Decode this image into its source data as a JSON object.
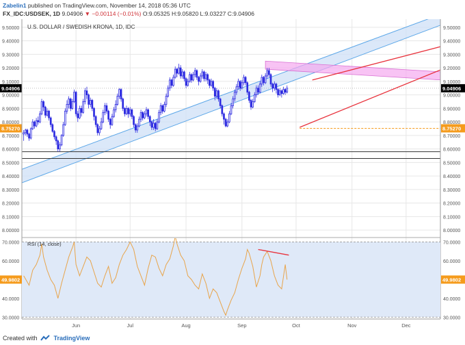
{
  "header": {
    "author": "Zabelin1",
    "published_text": "published on TradingView.com, November 14, 2018 05:36 UTC",
    "symbol": "FX_IDC:USDSEK, 1D",
    "last": "9.04906",
    "change": "−0.00114 (−0.01%)",
    "ohlc": "O:9.05325 H:9.05820 L:9.03227 C:9.04906"
  },
  "footer": {
    "created_with": "Created with",
    "brand": "TradingView"
  },
  "colors": {
    "candle_up": "#ffffff",
    "candle_down": "#2c2ae0",
    "candle_outline": "#2c2ae0",
    "channel_fill": "#cfe0f7",
    "channel_line": "#5aa6e8",
    "pink_zone": "#f5a9f0",
    "red_line": "#e8323c",
    "orange_level": "#f59b1c",
    "rsi_line": "#e8a44a",
    "rsi_fill": "#dfe9f8",
    "grid": "#e6e6e6",
    "current_price_bg": "#000000"
  },
  "chart_data": [
    {
      "type": "candlestick",
      "title": "U.S. DOLLAR / SWEDISH KRONA, 1D, IDC",
      "x_labels": [
        "Jun",
        "Jul",
        "Aug",
        "Sep",
        "Oct",
        "Nov",
        "Dec"
      ],
      "x_label_days": [
        52,
        82,
        113,
        144,
        174,
        205,
        235
      ],
      "x_range_days": [
        22,
        254
      ],
      "ylim": [
        7.95,
        9.56
      ],
      "y_ticks": [
        8.0,
        8.1,
        8.2,
        8.3,
        8.4,
        8.5,
        8.6,
        8.7,
        8.8,
        8.9,
        9.0,
        9.1,
        9.2,
        9.3,
        9.4,
        9.5
      ],
      "y_tick_labels": [
        "8.00000",
        "8.10000",
        "8.20000",
        "8.30000",
        "8.40000",
        "8.50000",
        "8.60000",
        "8.70000",
        "8.80000",
        "8.90000",
        "9.00000",
        "9.10000",
        "9.20000",
        "9.30000",
        "9.40000",
        "9.50000"
      ],
      "current_price": 9.04906,
      "current_price_label": "9.04906",
      "level_line": 8.7527,
      "level_line_label": "8.75270",
      "support_lines": [
        8.58,
        8.53
      ],
      "channel": {
        "lower": [
          [
            22,
            8.35
          ],
          [
            255,
            9.52
          ]
        ],
        "upper": [
          [
            22,
            8.45
          ],
          [
            255,
            9.6
          ]
        ]
      },
      "resistance_zone": {
        "x": [
          157,
          255
        ],
        "top": [
          9.25,
          9.17
        ],
        "bottom": [
          9.19,
          9.11
        ]
      },
      "triangle": {
        "upper": [
          [
            183,
            9.11
          ],
          [
            255,
            9.36
          ]
        ],
        "lower": [
          [
            176,
            8.76
          ],
          [
            255,
            9.19
          ]
        ]
      },
      "candles": [
        [
          23,
          8.71,
          8.72,
          8.66,
          8.74
        ],
        [
          24,
          8.72,
          8.74,
          8.7,
          8.75
        ],
        [
          25,
          8.74,
          8.71,
          8.69,
          8.75
        ],
        [
          26,
          8.71,
          8.68,
          8.66,
          8.72
        ],
        [
          27,
          8.68,
          8.75,
          8.67,
          8.76
        ],
        [
          28,
          8.75,
          8.8,
          8.74,
          8.82
        ],
        [
          29,
          8.8,
          8.77,
          8.75,
          8.81
        ],
        [
          30,
          8.77,
          8.81,
          8.76,
          8.83
        ],
        [
          31,
          8.81,
          8.8,
          8.78,
          8.84
        ],
        [
          32,
          8.8,
          8.86,
          8.79,
          8.88
        ],
        [
          33,
          8.86,
          8.95,
          8.85,
          8.97
        ],
        [
          34,
          8.95,
          8.91,
          8.88,
          8.96
        ],
        [
          35,
          8.91,
          8.85,
          8.83,
          8.92
        ],
        [
          36,
          8.85,
          8.88,
          8.84,
          8.9
        ],
        [
          37,
          8.88,
          8.83,
          8.81,
          8.89
        ],
        [
          38,
          8.83,
          8.78,
          8.76,
          8.84
        ],
        [
          39,
          8.78,
          8.73,
          8.72,
          8.79
        ],
        [
          40,
          8.73,
          8.69,
          8.67,
          8.74
        ],
        [
          41,
          8.69,
          8.66,
          8.63,
          8.7
        ],
        [
          42,
          8.66,
          8.6,
          8.58,
          8.67
        ],
        [
          43,
          8.6,
          8.63,
          8.58,
          8.65
        ],
        [
          44,
          8.63,
          8.7,
          8.62,
          8.71
        ],
        [
          45,
          8.7,
          8.78,
          8.69,
          8.8
        ],
        [
          46,
          8.78,
          8.88,
          8.77,
          8.9
        ],
        [
          47,
          8.88,
          8.93,
          8.86,
          8.96
        ],
        [
          48,
          8.93,
          8.97,
          8.9,
          8.99
        ],
        [
          49,
          8.97,
          8.9,
          8.88,
          8.98
        ],
        [
          50,
          8.9,
          8.95,
          8.89,
          8.97
        ],
        [
          51,
          8.95,
          9.02,
          8.94,
          9.04
        ],
        [
          52,
          9.02,
          8.86,
          8.84,
          9.03
        ],
        [
          53,
          8.86,
          8.83,
          8.8,
          8.88
        ],
        [
          54,
          8.83,
          8.9,
          8.82,
          8.92
        ],
        [
          55,
          8.9,
          8.87,
          8.84,
          8.92
        ],
        [
          56,
          8.87,
          8.95,
          8.86,
          8.97
        ],
        [
          57,
          8.95,
          9.03,
          8.93,
          9.05
        ],
        [
          58,
          9.03,
          9.0,
          8.97,
          9.06
        ],
        [
          59,
          9.0,
          8.93,
          8.9,
          9.01
        ],
        [
          60,
          8.93,
          8.96,
          8.91,
          8.98
        ],
        [
          61,
          8.96,
          8.9,
          8.88,
          8.97
        ],
        [
          62,
          8.9,
          8.84,
          8.81,
          8.91
        ],
        [
          63,
          8.84,
          8.78,
          8.76,
          8.85
        ],
        [
          64,
          8.78,
          8.72,
          8.7,
          8.79
        ],
        [
          65,
          8.72,
          8.75,
          8.7,
          8.77
        ],
        [
          66,
          8.75,
          8.8,
          8.74,
          8.83
        ],
        [
          67,
          8.8,
          8.87,
          8.79,
          8.89
        ],
        [
          68,
          8.87,
          8.92,
          8.85,
          8.94
        ],
        [
          69,
          8.92,
          8.88,
          8.86,
          8.94
        ],
        [
          70,
          8.88,
          8.82,
          8.8,
          8.89
        ],
        [
          71,
          8.82,
          8.78,
          8.75,
          8.83
        ],
        [
          72,
          8.78,
          8.84,
          8.77,
          8.86
        ],
        [
          73,
          8.84,
          8.89,
          8.83,
          8.91
        ],
        [
          74,
          8.89,
          8.93,
          8.87,
          8.96
        ],
        [
          75,
          8.93,
          8.99,
          8.92,
          9.01
        ],
        [
          76,
          8.99,
          9.04,
          8.97,
          9.05
        ],
        [
          77,
          9.04,
          8.97,
          8.95,
          9.05
        ],
        [
          78,
          8.97,
          8.9,
          8.88,
          8.98
        ],
        [
          79,
          8.9,
          8.86,
          8.84,
          8.91
        ],
        [
          80,
          8.86,
          8.9,
          8.85,
          8.92
        ],
        [
          81,
          8.9,
          8.86,
          8.83,
          8.91
        ],
        [
          82,
          8.86,
          8.89,
          8.84,
          8.91
        ],
        [
          83,
          8.89,
          8.84,
          8.82,
          8.9
        ],
        [
          84,
          8.84,
          8.78,
          8.76,
          8.85
        ],
        [
          85,
          8.78,
          8.74,
          8.72,
          8.79
        ],
        [
          86,
          8.74,
          8.77,
          8.72,
          8.79
        ],
        [
          87,
          8.77,
          8.82,
          8.76,
          8.84
        ],
        [
          88,
          8.82,
          8.87,
          8.8,
          8.89
        ],
        [
          89,
          8.87,
          8.83,
          8.81,
          8.88
        ],
        [
          90,
          8.83,
          8.86,
          8.82,
          8.88
        ],
        [
          91,
          8.86,
          8.89,
          8.84,
          8.91
        ],
        [
          92,
          8.89,
          8.84,
          8.82,
          8.9
        ],
        [
          93,
          8.84,
          8.8,
          8.77,
          8.85
        ],
        [
          94,
          8.8,
          8.76,
          8.74,
          8.81
        ],
        [
          95,
          8.76,
          8.79,
          8.74,
          8.82
        ],
        [
          96,
          8.79,
          8.75,
          8.73,
          8.8
        ],
        [
          97,
          8.75,
          8.8,
          8.74,
          8.82
        ],
        [
          98,
          8.8,
          8.87,
          8.79,
          8.89
        ],
        [
          99,
          8.87,
          8.92,
          8.85,
          8.94
        ],
        [
          100,
          8.92,
          8.88,
          8.86,
          8.93
        ],
        [
          101,
          8.88,
          8.93,
          8.87,
          8.95
        ],
        [
          102,
          8.93,
          8.99,
          8.91,
          9.01
        ],
        [
          103,
          8.99,
          9.05,
          8.98,
          9.07
        ],
        [
          104,
          9.05,
          9.11,
          9.03,
          9.13
        ],
        [
          105,
          9.11,
          9.07,
          9.05,
          9.12
        ],
        [
          106,
          9.07,
          9.13,
          9.06,
          9.15
        ],
        [
          107,
          9.13,
          9.19,
          9.12,
          9.21
        ],
        [
          108,
          9.19,
          9.16,
          9.13,
          9.2
        ],
        [
          109,
          9.16,
          9.2,
          9.15,
          9.23
        ],
        [
          110,
          9.2,
          9.14,
          9.12,
          9.22
        ],
        [
          111,
          9.14,
          9.17,
          9.12,
          9.19
        ],
        [
          112,
          9.17,
          9.12,
          9.1,
          9.18
        ],
        [
          113,
          9.12,
          9.07,
          9.05,
          9.13
        ],
        [
          114,
          9.07,
          9.1,
          9.06,
          9.12
        ],
        [
          115,
          9.1,
          9.15,
          9.09,
          9.17
        ],
        [
          116,
          9.15,
          9.11,
          9.09,
          9.16
        ],
        [
          117,
          9.11,
          9.15,
          9.1,
          9.17
        ],
        [
          118,
          9.15,
          9.18,
          9.13,
          9.2
        ],
        [
          119,
          9.18,
          9.13,
          9.11,
          9.19
        ],
        [
          120,
          9.13,
          9.1,
          9.07,
          9.14
        ],
        [
          121,
          9.1,
          9.14,
          9.09,
          9.16
        ],
        [
          122,
          9.14,
          9.17,
          9.12,
          9.19
        ],
        [
          123,
          9.17,
          9.12,
          9.1,
          9.18
        ],
        [
          124,
          9.12,
          9.15,
          9.1,
          9.17
        ],
        [
          125,
          9.15,
          9.11,
          9.08,
          9.16
        ],
        [
          126,
          9.11,
          9.07,
          9.05,
          9.12
        ],
        [
          127,
          9.07,
          9.1,
          9.06,
          9.12
        ],
        [
          128,
          9.1,
          9.05,
          9.03,
          9.11
        ],
        [
          129,
          9.05,
          8.99,
          8.96,
          9.06
        ],
        [
          130,
          8.99,
          9.03,
          8.97,
          9.05
        ],
        [
          131,
          9.03,
          8.97,
          8.95,
          9.04
        ],
        [
          132,
          8.97,
          8.92,
          8.9,
          8.98
        ],
        [
          133,
          8.92,
          8.86,
          8.84,
          8.93
        ],
        [
          134,
          8.86,
          8.82,
          8.78,
          8.87
        ],
        [
          135,
          8.82,
          8.77,
          8.76,
          8.83
        ],
        [
          136,
          8.77,
          8.8,
          8.76,
          8.82
        ],
        [
          137,
          8.8,
          8.86,
          8.79,
          8.88
        ],
        [
          138,
          8.86,
          8.92,
          8.85,
          8.94
        ],
        [
          139,
          8.92,
          8.97,
          8.9,
          8.99
        ],
        [
          140,
          8.97,
          9.02,
          8.95,
          9.04
        ],
        [
          141,
          9.02,
          9.06,
          9.0,
          9.08
        ],
        [
          142,
          9.06,
          9.1,
          9.04,
          9.12
        ],
        [
          143,
          9.1,
          9.05,
          9.03,
          9.11
        ],
        [
          144,
          9.05,
          9.09,
          9.04,
          9.11
        ],
        [
          145,
          9.09,
          9.13,
          9.07,
          9.15
        ],
        [
          146,
          9.13,
          9.09,
          9.07,
          9.14
        ],
        [
          147,
          9.09,
          9.02,
          9.0,
          9.1
        ],
        [
          148,
          9.02,
          8.96,
          8.94,
          9.03
        ],
        [
          149,
          8.96,
          8.91,
          8.89,
          8.97
        ],
        [
          150,
          8.91,
          8.95,
          8.9,
          8.97
        ],
        [
          151,
          8.95,
          9.0,
          8.94,
          9.02
        ],
        [
          152,
          9.0,
          9.05,
          8.98,
          9.07
        ],
        [
          153,
          9.05,
          9.02,
          9.0,
          9.07
        ],
        [
          154,
          9.02,
          9.08,
          9.01,
          9.1
        ],
        [
          155,
          9.08,
          9.13,
          9.06,
          9.15
        ],
        [
          156,
          9.13,
          9.09,
          9.07,
          9.14
        ],
        [
          157,
          9.09,
          9.14,
          9.08,
          9.16
        ],
        [
          158,
          9.14,
          9.18,
          9.12,
          9.2
        ],
        [
          159,
          9.18,
          9.15,
          9.13,
          9.2
        ],
        [
          160,
          9.15,
          9.08,
          9.06,
          9.16
        ],
        [
          161,
          9.08,
          9.05,
          9.02,
          9.09
        ],
        [
          162,
          9.05,
          9.08,
          9.03,
          9.1
        ],
        [
          163,
          9.08,
          9.04,
          9.01,
          9.09
        ],
        [
          164,
          9.04,
          9.0,
          8.98,
          9.05
        ],
        [
          165,
          9.0,
          9.03,
          8.99,
          9.05
        ],
        [
          166,
          9.03,
          9.01,
          8.98,
          9.04
        ],
        [
          167,
          9.01,
          9.04,
          9.0,
          9.06
        ],
        [
          168,
          9.04,
          9.02,
          9.0,
          9.05
        ],
        [
          169,
          9.02,
          9.05,
          9.01,
          9.07
        ]
      ]
    },
    {
      "type": "line",
      "title": "RSI (14, close)",
      "ylim": [
        29,
        72
      ],
      "y_ticks": [
        30,
        40,
        50,
        60,
        70
      ],
      "y_tick_labels": [
        "30.0000",
        "40.0000",
        "50.0000",
        "60.0000",
        "70.0000"
      ],
      "band": [
        30,
        70
      ],
      "current_value": 49.9802,
      "current_value_label": "49.9802",
      "divergence_line": [
        [
          153,
          66.0
        ],
        [
          170,
          63.0
        ]
      ],
      "x": [
        23,
        26,
        28,
        30,
        32,
        33,
        34,
        36,
        38,
        40,
        42,
        44,
        46,
        48,
        50,
        51,
        52,
        54,
        56,
        58,
        60,
        62,
        64,
        66,
        68,
        70,
        72,
        74,
        76,
        78,
        80,
        82,
        84,
        86,
        88,
        90,
        92,
        94,
        96,
        98,
        100,
        102,
        104,
        106,
        107,
        108,
        110,
        112,
        114,
        116,
        118,
        120,
        122,
        124,
        126,
        128,
        130,
        132,
        134,
        135,
        136,
        138,
        140,
        142,
        144,
        146,
        147,
        148,
        150,
        152,
        154,
        155,
        156,
        158,
        160,
        161,
        162,
        164,
        166,
        168,
        169
      ],
      "y": [
        52,
        47,
        55,
        58,
        63,
        69,
        62,
        55,
        50,
        47,
        40,
        48,
        55,
        62,
        67,
        70,
        58,
        52,
        57,
        62,
        60,
        54,
        48,
        46,
        52,
        57,
        48,
        51,
        58,
        63,
        66,
        70,
        66,
        57,
        52,
        47,
        56,
        63,
        62,
        56,
        52,
        58,
        61,
        68,
        73,
        69,
        63,
        60,
        52,
        50,
        47,
        45,
        53,
        48,
        40,
        45,
        43,
        38,
        33,
        31,
        34,
        39,
        43,
        50,
        56,
        61,
        66,
        64,
        57,
        46,
        52,
        58,
        62,
        65,
        60,
        56,
        52,
        47,
        45,
        58,
        49.98
      ]
    }
  ]
}
